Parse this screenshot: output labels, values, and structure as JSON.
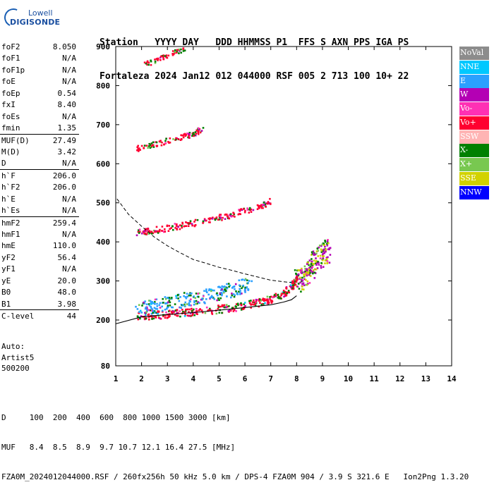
{
  "logo": {
    "line1": "Lowell",
    "line2": "DIGISONDE"
  },
  "header": {
    "labels": "Station   YYYY DAY   DDD HHMMSS P1  FFS S AXN PPS IGA PS",
    "values": "Fortaleza 2024 Jan12 012 044000 RSF 005 2 713 100 10+ 22"
  },
  "params": [
    {
      "k": "foF2",
      "v": "8.050"
    },
    {
      "k": "foF1",
      "v": "N/A"
    },
    {
      "k": "foF1p",
      "v": "N/A"
    },
    {
      "k": "foE",
      "v": "N/A"
    },
    {
      "k": "foEp",
      "v": "0.54"
    },
    {
      "k": "fxI",
      "v": "8.40"
    },
    {
      "k": "foEs",
      "v": "N/A"
    },
    {
      "k": "fmin",
      "v": "1.35"
    },
    {
      "k": "MUF(D)",
      "v": "27.49"
    },
    {
      "k": "M(D)",
      "v": "3.42"
    },
    {
      "k": "D",
      "v": "N/A"
    },
    {
      "k": "h`F",
      "v": "206.0"
    },
    {
      "k": "h`F2",
      "v": "206.0"
    },
    {
      "k": "h`E",
      "v": "N/A"
    },
    {
      "k": "h`Es",
      "v": "N/A"
    },
    {
      "k": "hmF2",
      "v": "259.4"
    },
    {
      "k": "hmF1",
      "v": "N/A"
    },
    {
      "k": "hmE",
      "v": "110.0"
    },
    {
      "k": "yF2",
      "v": "56.4"
    },
    {
      "k": "yF1",
      "v": "N/A"
    },
    {
      "k": "yE",
      "v": "20.0"
    },
    {
      "k": "B0",
      "v": "48.0"
    },
    {
      "k": "B1",
      "v": "3.98"
    },
    {
      "k": "C-level",
      "v": "44"
    }
  ],
  "auto": {
    "line1": "Auto:",
    "line2": "Artist5",
    "line3": "500200"
  },
  "legend": [
    {
      "label": "NoVal",
      "color": "#8c8c8c"
    },
    {
      "label": "NNE",
      "color": "#00c8ff"
    },
    {
      "label": "E",
      "color": "#2aa0ff"
    },
    {
      "label": "W",
      "color": "#b400b4"
    },
    {
      "label": "Vo-",
      "color": "#ff30b4"
    },
    {
      "label": "Vo+",
      "color": "#ff0030"
    },
    {
      "label": "SSW",
      "color": "#ffb4b4"
    },
    {
      "label": "X-",
      "color": "#008000"
    },
    {
      "label": "X+",
      "color": "#78c850"
    },
    {
      "label": "SSE",
      "color": "#d2d200"
    },
    {
      "label": "NNW",
      "color": "#0000ff"
    }
  ],
  "chart_data": {
    "type": "scatter",
    "xlim": [
      1,
      14
    ],
    "ylim": [
      80,
      900
    ],
    "x_ticks": [
      1,
      2,
      3,
      4,
      5,
      6,
      7,
      8,
      9,
      10,
      11,
      12,
      13,
      14
    ],
    "y_ticks": [
      80,
      200,
      300,
      400,
      500,
      600,
      700,
      800,
      900
    ],
    "trace_layers": [
      {
        "name": "o-trace 1st hop",
        "color": "#ff0030",
        "points": [
          [
            1.8,
            212
          ],
          [
            2.5,
            214
          ],
          [
            3.2,
            218
          ],
          [
            4.0,
            222
          ],
          [
            4.8,
            228
          ],
          [
            5.6,
            235
          ],
          [
            6.4,
            245
          ],
          [
            7.0,
            255
          ],
          [
            7.5,
            270
          ],
          [
            7.8,
            290
          ],
          [
            8.0,
            310
          ]
        ]
      },
      {
        "name": "oblique spread",
        "color": "#2aa0ff",
        "points": [
          [
            1.8,
            228
          ],
          [
            2.5,
            238
          ],
          [
            3.2,
            248
          ],
          [
            4.0,
            258
          ],
          [
            4.8,
            268
          ],
          [
            5.5,
            280
          ],
          [
            6.2,
            295
          ]
        ]
      },
      {
        "name": "x-trace",
        "color": "#b400b4",
        "points": [
          [
            8.0,
            300
          ],
          [
            8.3,
            320
          ],
          [
            8.6,
            345
          ],
          [
            8.9,
            365
          ],
          [
            9.2,
            380
          ]
        ]
      },
      {
        "name": "2nd hop",
        "color": "#ff0030",
        "points": [
          [
            1.8,
            425
          ],
          [
            2.5,
            432
          ],
          [
            3.2,
            440
          ],
          [
            4.0,
            450
          ],
          [
            4.8,
            460
          ],
          [
            5.6,
            475
          ],
          [
            6.4,
            488
          ],
          [
            7.0,
            505
          ]
        ]
      },
      {
        "name": "3rd hop",
        "color": "#ff0030",
        "points": [
          [
            1.8,
            640
          ],
          [
            2.5,
            652
          ],
          [
            3.2,
            665
          ],
          [
            3.8,
            675
          ],
          [
            4.3,
            690
          ]
        ]
      },
      {
        "name": "4th hop",
        "color": "#ff0030",
        "points": [
          [
            2.1,
            855
          ],
          [
            2.5,
            866
          ],
          [
            2.9,
            877
          ],
          [
            3.3,
            888
          ],
          [
            3.7,
            896
          ]
        ]
      }
    ],
    "profile_solid": [
      [
        1.0,
        190
      ],
      [
        2.0,
        208
      ],
      [
        3.0,
        214
      ],
      [
        4.0,
        219
      ],
      [
        5.0,
        225
      ],
      [
        6.0,
        232
      ],
      [
        7.0,
        239
      ],
      [
        7.5,
        246
      ],
      [
        7.8,
        252
      ],
      [
        8.0,
        262
      ]
    ],
    "profile_dashed": [
      [
        1.05,
        510
      ],
      [
        1.5,
        470
      ],
      [
        2.0,
        440
      ],
      [
        2.5,
        412
      ],
      [
        3.0,
        390
      ],
      [
        3.5,
        372
      ],
      [
        4.0,
        355
      ],
      [
        4.5,
        345
      ],
      [
        5.0,
        335
      ],
      [
        5.5,
        327
      ],
      [
        6.0,
        318
      ],
      [
        6.5,
        310
      ],
      [
        7.0,
        302
      ],
      [
        7.5,
        298
      ],
      [
        7.8,
        296
      ]
    ]
  },
  "footer": {
    "line1": "D     100  200  400  600  800 1000 1500 3000 [km]",
    "line2": "MUF   8.4  8.5  8.9  9.7 10.7 12.1 16.4 27.5 [MHz]",
    "line3": "FZA0M_2024012044000.RSF / 260fx256h 50 kHz 5.0 km / DPS-4 FZA0M 904 / 3.9 S 321.6 E   Ion2Png 1.3.20"
  }
}
